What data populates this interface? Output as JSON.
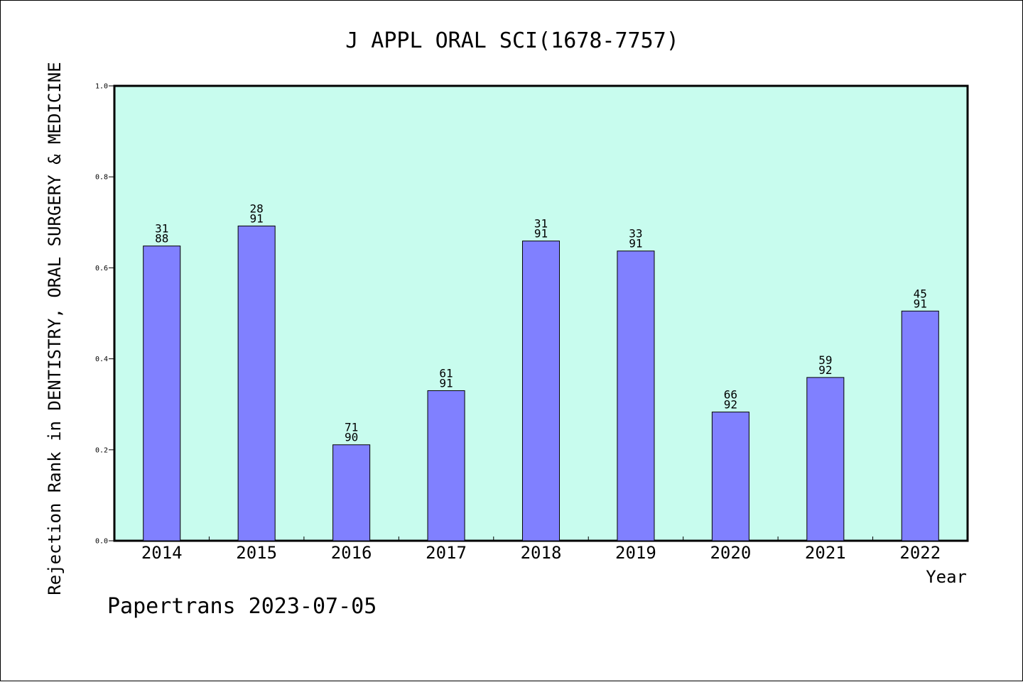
{
  "chart_data": {
    "type": "bar",
    "title": "J APPL ORAL SCI(1678-7757)",
    "ylabel": "Rejection Rank in DENTISTRY, ORAL SURGERY & MEDICINE",
    "xlabel": "Year",
    "ylim": [
      0,
      1.0
    ],
    "yticks": [
      "0.0",
      "0.2",
      "0.4",
      "0.6",
      "0.8",
      "1.0"
    ],
    "categories": [
      "2014",
      "2015",
      "2016",
      "2017",
      "2018",
      "2019",
      "2020",
      "2021",
      "2022"
    ],
    "values": [
      0.648,
      0.692,
      0.211,
      0.33,
      0.659,
      0.637,
      0.283,
      0.359,
      0.505
    ],
    "label_top": [
      "31",
      "28",
      "71",
      "61",
      "31",
      "33",
      "66",
      "59",
      "45"
    ],
    "label_bottom": [
      "88",
      "91",
      "90",
      "91",
      "91",
      "91",
      "92",
      "92",
      "91"
    ],
    "grid": false,
    "colors": {
      "plot_background": "#c8fcee",
      "bar_fill": "#8080ff",
      "bar_stroke": "#000000"
    }
  },
  "footer": {
    "text": "Papertrans 2023-07-05"
  }
}
